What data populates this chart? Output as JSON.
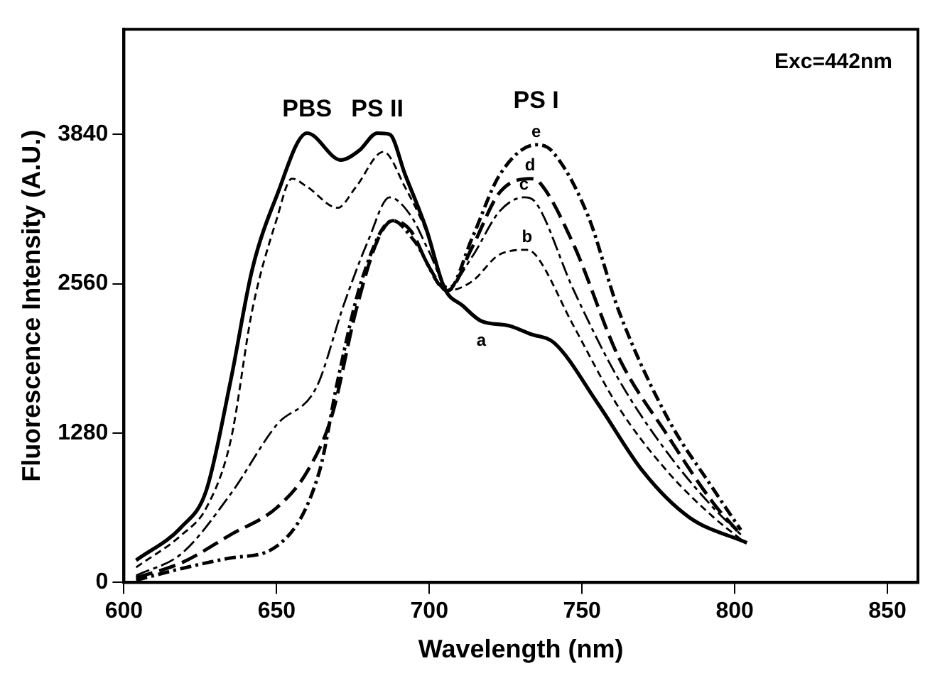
{
  "chart_data": {
    "type": "line",
    "xlabel": "Wavelength (nm)",
    "ylabel": "Fluorescence Intensity (A.U.)",
    "xlim": [
      600,
      860
    ],
    "xticks": [
      600,
      650,
      700,
      750,
      800,
      850
    ],
    "ylim": [
      0,
      4740
    ],
    "yticks": [
      0,
      1280,
      2560,
      3840
    ],
    "grid": false,
    "legend": false,
    "marker": "none",
    "annotations": [
      {
        "text": "PBS",
        "x": 660,
        "y": 3850
      },
      {
        "text": "PS II",
        "x": 683,
        "y": 3850
      },
      {
        "text": "PS I",
        "x": 735,
        "y": 3750
      },
      "Exc=442nm"
    ],
    "series": [
      {
        "name": "a",
        "color": "#000000",
        "line_style": "solid",
        "x": [
          604,
          619,
          627,
          635,
          642,
          650,
          660,
          671,
          677,
          683,
          687,
          692,
          699,
          705,
          711,
          717,
          726,
          733,
          741,
          755,
          770,
          785,
          804
        ],
        "values": [
          190,
          480,
          790,
          1735,
          2680,
          3310,
          3850,
          3620,
          3700,
          3850,
          3840,
          3500,
          3030,
          2520,
          2370,
          2240,
          2200,
          2130,
          2050,
          1540,
          950,
          560,
          340
        ]
      },
      {
        "name": "b",
        "color": "#000000",
        "line_style": "dashed",
        "x": [
          604,
          619,
          627,
          635,
          642,
          650,
          655,
          660,
          670,
          676,
          685,
          692,
          699,
          706,
          714,
          723,
          732,
          735,
          747,
          762,
          778,
          793,
          802
        ],
        "values": [
          130,
          410,
          640,
          1220,
          2330,
          3110,
          3460,
          3390,
          3210,
          3390,
          3690,
          3390,
          3010,
          2500,
          2580,
          2810,
          2850,
          2800,
          2210,
          1500,
          950,
          560,
          370
        ]
      },
      {
        "name": "c",
        "color": "#000000",
        "line_style": "dashed",
        "x": [
          604,
          619,
          635,
          650,
          663,
          672,
          680,
          687,
          694,
          700,
          706,
          714,
          723,
          731,
          735,
          747,
          762,
          778,
          793,
          802
        ],
        "values": [
          60,
          250,
          760,
          1350,
          1670,
          2380,
          2930,
          3300,
          3140,
          2830,
          2530,
          2790,
          3180,
          3300,
          3250,
          2520,
          1740,
          1110,
          640,
          410
        ]
      },
      {
        "name": "d",
        "color": "#000000",
        "line_style": "dashed",
        "x": [
          604,
          619,
          635,
          650,
          660,
          668,
          676,
          683,
          688,
          694,
          700,
          706,
          714,
          723,
          733,
          736,
          747,
          762,
          778,
          793,
          802
        ],
        "values": [
          40,
          170,
          410,
          640,
          950,
          1420,
          2330,
          2930,
          3100,
          3010,
          2700,
          2500,
          2870,
          3340,
          3460,
          3430,
          2910,
          1930,
          1260,
          680,
          410
        ]
      },
      {
        "name": "e",
        "color": "#000000",
        "line_style": "dashed",
        "x": [
          604,
          619,
          635,
          650,
          664,
          670,
          678,
          688,
          695,
          706,
          714,
          723,
          735,
          740,
          752,
          762,
          778,
          793,
          802
        ],
        "values": [
          20,
          120,
          210,
          310,
          950,
          1730,
          2600,
          3100,
          2930,
          2500,
          2950,
          3490,
          3750,
          3700,
          3140,
          2330,
          1410,
          800,
          450
        ]
      }
    ]
  }
}
